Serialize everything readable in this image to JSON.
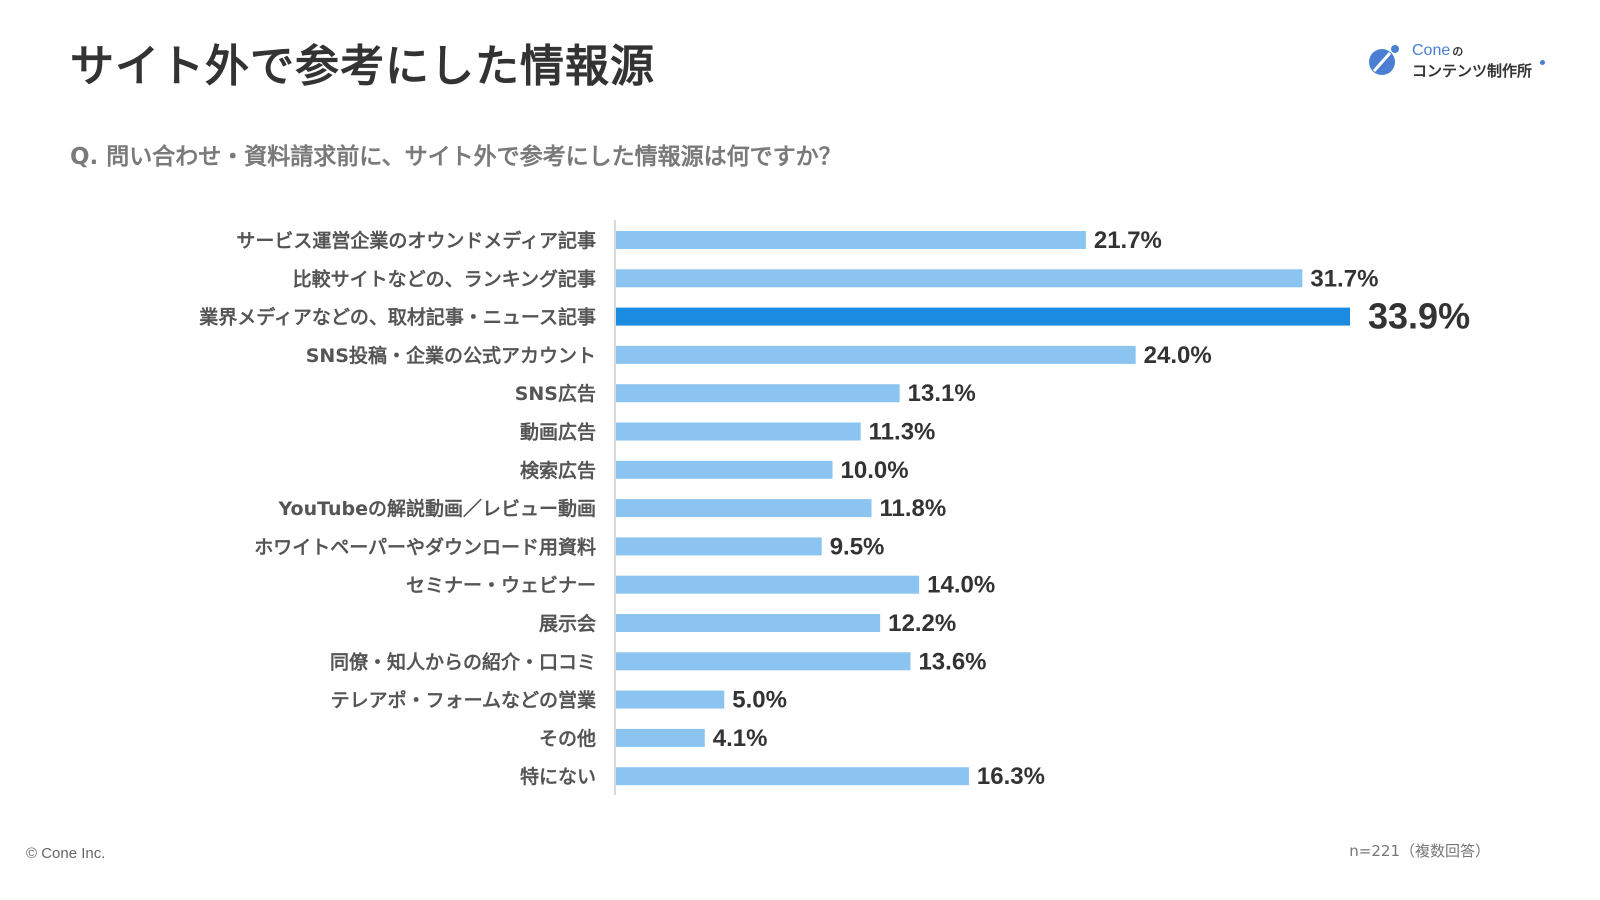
{
  "header": {
    "title": "サイト外で参考にした情報源",
    "question": "Q. 問い合わせ・資料請求前に、サイト外で参考にした情報源は何ですか？"
  },
  "logo": {
    "brand": "Cone",
    "particle": "の",
    "subtitle": "コンテンツ制作所"
  },
  "footer": {
    "copyright": "© Cone Inc.",
    "sample_note": "n=221（複数回答）"
  },
  "colors": {
    "bar": "#8BC4F0",
    "highlight_bar": "#1A8BE0",
    "axis": "#d9d9d9"
  },
  "chart_data": {
    "type": "bar",
    "orientation": "horizontal",
    "title": "サイト外で参考にした情報源",
    "xlabel": "",
    "ylabel": "",
    "unit": "%",
    "xlim": [
      0,
      33.9
    ],
    "grid": false,
    "legend": "none",
    "highlight_index": 2,
    "categories": [
      "サービス運営企業のオウンドメディア記事",
      "比較サイトなどの、ランキング記事",
      "業界メディアなどの、取材記事・ニュース記事",
      "SNS投稿・企業の公式アカウント",
      "SNS広告",
      "動画広告",
      "検索広告",
      "YouTubeの解説動画／レビュー動画",
      "ホワイトペーパーやダウンロード用資料",
      "セミナー・ウェビナー",
      "展示会",
      "同僚・知人からの紹介・口コミ",
      "テレアポ・フォームなどの営業",
      "その他",
      "特にない"
    ],
    "values": [
      21.7,
      31.7,
      33.9,
      24.0,
      13.1,
      11.3,
      10.0,
      11.8,
      9.5,
      14.0,
      12.2,
      13.6,
      5.0,
      4.1,
      16.3
    ],
    "value_labels": [
      "21.7%",
      "31.7%",
      "33.9%",
      "24.0%",
      "13.1%",
      "11.3%",
      "10.0%",
      "11.8%",
      "9.5%",
      "14.0%",
      "12.2%",
      "13.6%",
      "5.0%",
      "4.1%",
      "16.3%"
    ]
  }
}
